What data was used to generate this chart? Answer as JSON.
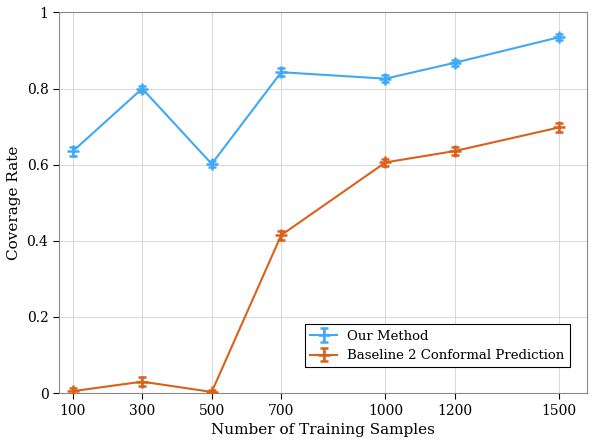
{
  "x": [
    100,
    300,
    500,
    700,
    1000,
    1200,
    1500
  ],
  "our_method_y": [
    0.635,
    0.8,
    0.602,
    0.843,
    0.826,
    0.868,
    0.935
  ],
  "our_method_yerr": [
    0.012,
    0.008,
    0.008,
    0.01,
    0.01,
    0.008,
    0.008
  ],
  "baseline_y": [
    0.005,
    0.03,
    0.003,
    0.415,
    0.606,
    0.636,
    0.698
  ],
  "baseline_yerr": [
    0.008,
    0.012,
    0.004,
    0.012,
    0.01,
    0.01,
    0.012
  ],
  "our_method_color": "#3fa9f5",
  "baseline_color": "#d9621a",
  "xlabel": "Number of Training Samples",
  "ylabel": "Coverage Rate",
  "ylim": [
    0,
    1.0
  ],
  "xlim": [
    60,
    1580
  ],
  "xticks": [
    100,
    300,
    500,
    700,
    1000,
    1200,
    1500
  ],
  "yticks": [
    0,
    0.2,
    0.4,
    0.6,
    0.8,
    1
  ],
  "ytick_labels": [
    "0",
    "0.2",
    "0.4",
    "0.6",
    "0.8",
    "1"
  ],
  "legend_our_method": "Our Method",
  "legend_baseline": "Baseline 2 Conformal Prediction",
  "grid_color": "#d8d8d8",
  "background_color": "#ffffff",
  "spine_color": "#888888"
}
